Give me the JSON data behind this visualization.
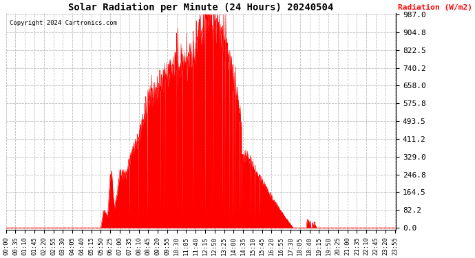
{
  "title": "Solar Radiation per Minute (24 Hours) 20240504",
  "copyright_text": "Copyright 2024 Cartronics.com",
  "ylabel": "Radiation (W/m2)",
  "ylabel_color": "#FF0000",
  "fill_color": "#FF0000",
  "line_color": "#FF0000",
  "background_color": "#FFFFFF",
  "grid_color": "#AAAAAA",
  "yticks": [
    0.0,
    82.2,
    164.5,
    246.8,
    329.0,
    411.2,
    493.5,
    575.8,
    658.0,
    740.2,
    822.5,
    904.8,
    987.0
  ],
  "ymax": 987.0,
  "ymin": 0.0,
  "total_minutes": 1440,
  "xtick_interval": 35,
  "x_tick_labels": [
    "00:00",
    "00:35",
    "01:10",
    "01:45",
    "02:20",
    "02:55",
    "03:30",
    "04:05",
    "04:40",
    "05:15",
    "05:50",
    "06:25",
    "07:00",
    "07:35",
    "08:10",
    "08:45",
    "09:20",
    "09:55",
    "10:30",
    "11:05",
    "11:40",
    "12:15",
    "12:50",
    "13:25",
    "14:00",
    "14:35",
    "15:10",
    "15:45",
    "16:20",
    "16:55",
    "17:30",
    "18:05",
    "18:40",
    "19:15",
    "19:50",
    "20:25",
    "21:00",
    "21:35",
    "22:10",
    "22:45",
    "23:20",
    "23:55"
  ]
}
